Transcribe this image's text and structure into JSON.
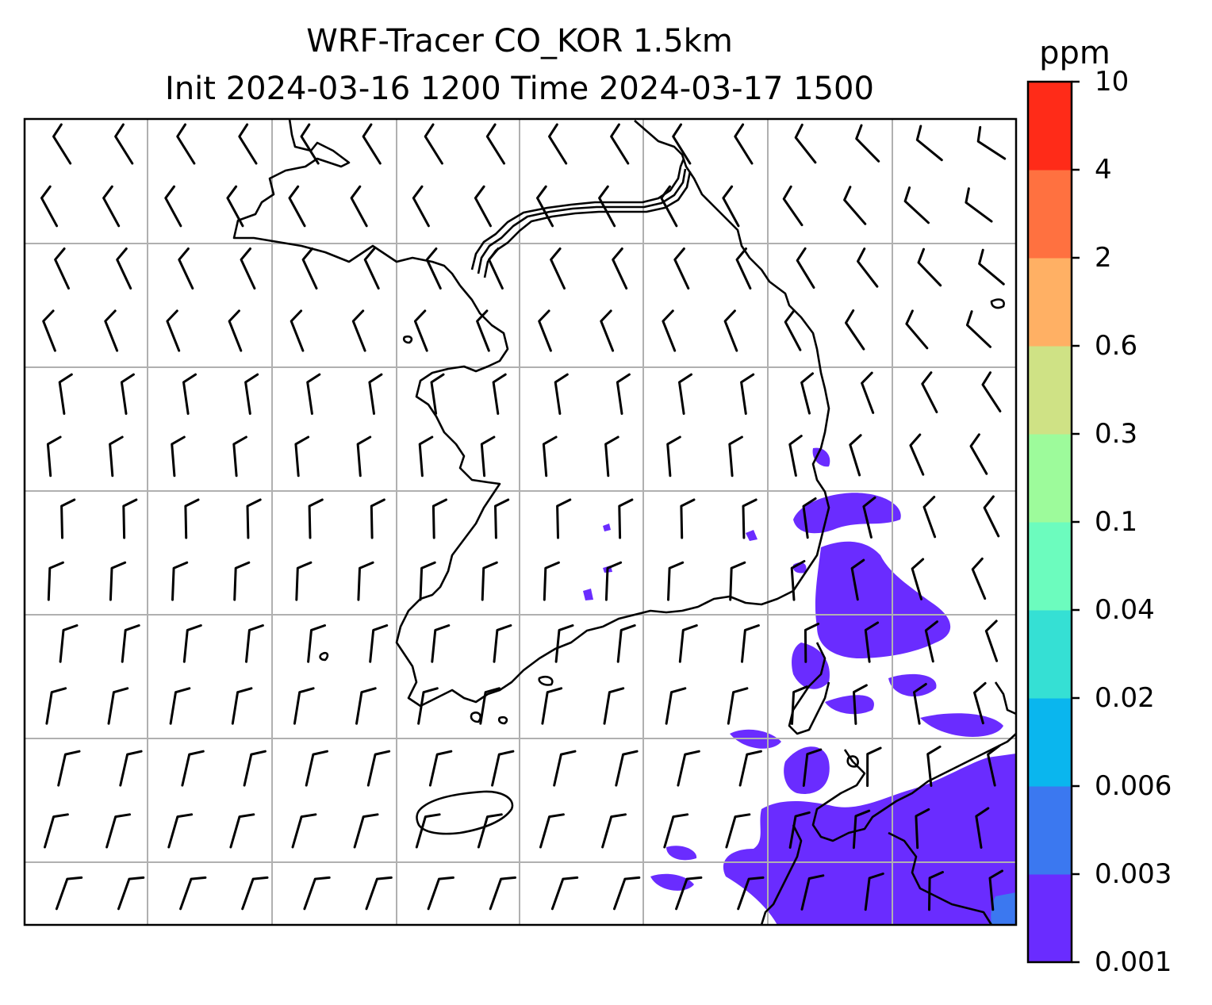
{
  "title": {
    "line1": "WRF-Tracer CO_KOR 1.5km",
    "line2": "Init 2024-03-16 1200 Time 2024-03-17 1500"
  },
  "colorbar": {
    "unit": "ppm",
    "levels": [
      "0.001",
      "0.003",
      "0.006",
      "0.02",
      "0.04",
      "0.1",
      "0.3",
      "0.6",
      "2",
      "4",
      "10"
    ],
    "colors": [
      "#6a2cff",
      "#3b78f0",
      "#0ab6ee",
      "#35e0d4",
      "#6cfcbe",
      "#9dfb9b",
      "#cfe285",
      "#ffb064",
      "#ff7140",
      "#ff2b18"
    ]
  },
  "map": {
    "coastline_color": "#000000",
    "gridline_color": "#b0b0b0",
    "plume_color": "#6a2cff",
    "plume_level": "0.001–0.003",
    "wind_symbol": "wind-barb"
  }
}
